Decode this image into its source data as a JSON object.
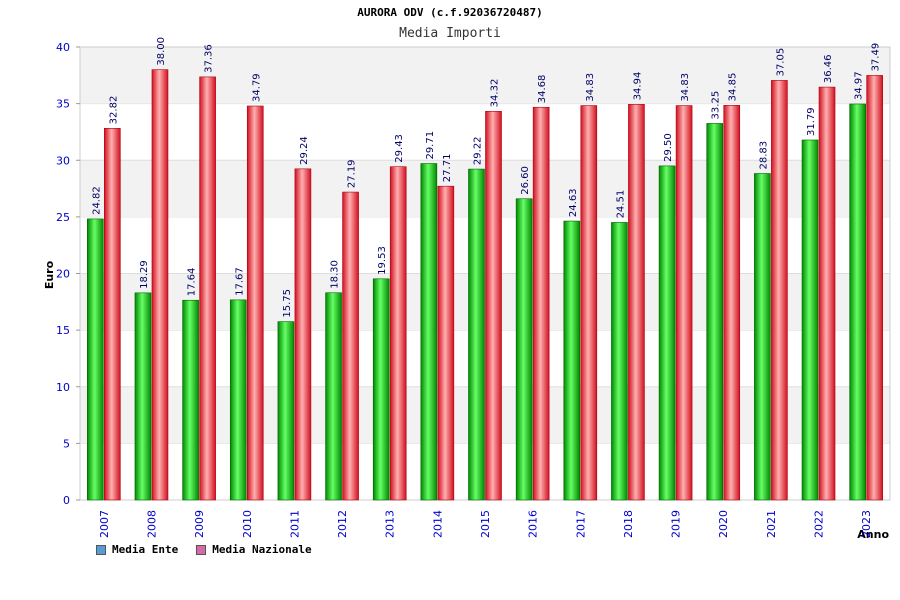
{
  "chart_data": {
    "type": "bar",
    "title": "AURORA ODV (c.f.92036720487)",
    "subtitle": "Media Importi",
    "xlabel": "Anno",
    "ylabel": "Euro",
    "ylim": [
      0,
      40
    ],
    "yticks": [
      "0",
      "5",
      "10",
      "15",
      "20",
      "25",
      "30",
      "35",
      "40"
    ],
    "categories": [
      "2007",
      "2008",
      "2009",
      "2010",
      "2011",
      "2012",
      "2013",
      "2014",
      "2015",
      "2016",
      "2017",
      "2018",
      "2019",
      "2020",
      "2021",
      "2022",
      "2023"
    ],
    "series": [
      {
        "name": "Media Ente",
        "color": "#00c000",
        "legend_color": "#5b9bd5",
        "values": [
          24.82,
          18.29,
          17.64,
          17.67,
          15.75,
          18.3,
          19.53,
          29.71,
          29.22,
          26.6,
          24.63,
          24.51,
          29.5,
          33.25,
          28.83,
          31.79,
          34.97
        ],
        "labels": [
          "24.82",
          "18.29",
          "17.64",
          "17.67",
          "15.75",
          "18.30",
          "19.53",
          "29.71",
          "29.22",
          "26.60",
          "24.63",
          "24.51",
          "29.50",
          "33.25",
          "28.83",
          "31.79",
          "34.97"
        ]
      },
      {
        "name": "Media Nazionale",
        "color": "#e8202a",
        "legend_color": "#d46aa6",
        "values": [
          32.82,
          38.0,
          37.36,
          34.79,
          29.24,
          27.19,
          29.43,
          27.71,
          34.32,
          34.68,
          34.83,
          34.94,
          34.83,
          34.85,
          37.05,
          36.46,
          37.49
        ],
        "labels": [
          "32.82",
          "38.00",
          "37.36",
          "34.79",
          "29.24",
          "27.19",
          "29.43",
          "27.71",
          "34.32",
          "34.68",
          "34.83",
          "34.94",
          "34.83",
          "34.85",
          "37.05",
          "36.46",
          "37.49"
        ]
      }
    ],
    "grid": true,
    "legend_position": "bottom-left"
  }
}
